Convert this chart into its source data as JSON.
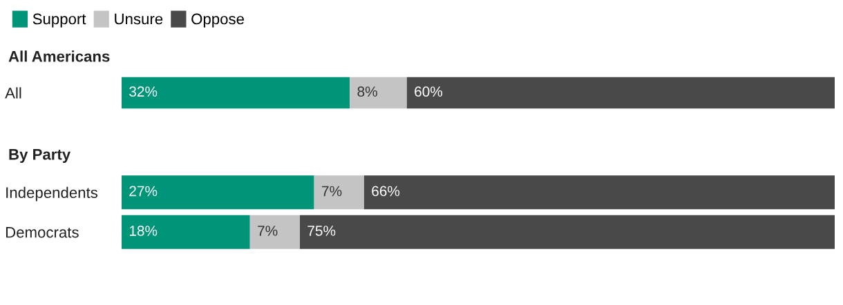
{
  "chart_data": [
    {
      "type": "bar",
      "orientation": "horizontal",
      "stacked": true,
      "title": "All Americans",
      "categories": [
        "All"
      ],
      "tick_labels": "y",
      "grid": false,
      "legend": "top left",
      "series": [
        {
          "name": "Support",
          "color": "#009479",
          "values": [
            32
          ],
          "value_labels": [
            "32%"
          ]
        },
        {
          "name": "Unsure",
          "color": "#c4c4c4",
          "values": [
            8
          ],
          "value_labels": [
            "8%"
          ]
        },
        {
          "name": "Oppose",
          "color": "#494949",
          "values": [
            60
          ],
          "value_labels": [
            "60%"
          ]
        }
      ]
    },
    {
      "type": "bar",
      "orientation": "horizontal",
      "stacked": true,
      "title": "By Party",
      "categories": [
        "Independents",
        "Democrats"
      ],
      "tick_labels": "y",
      "grid": false,
      "series": [
        {
          "color": "#009479",
          "values": [
            27,
            18
          ],
          "value_labels": [
            "27%",
            "18%"
          ]
        },
        {
          "color": "#c4c4c4",
          "values": [
            7,
            7
          ],
          "value_labels": [
            "7%",
            "7%"
          ]
        },
        {
          "color": "#494949",
          "values": [
            66,
            75
          ],
          "value_labels": [
            "66%",
            "75%"
          ]
        }
      ]
    }
  ]
}
